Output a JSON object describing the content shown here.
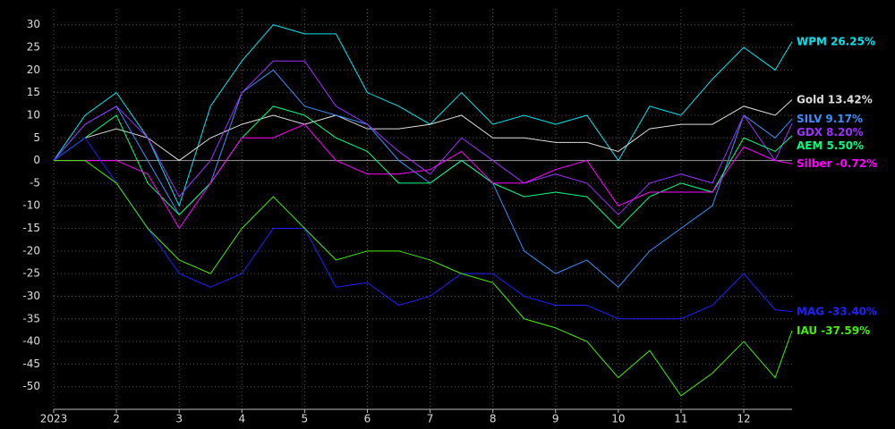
{
  "chart_data": {
    "type": "line",
    "x": [
      1,
      1.5,
      2,
      2.5,
      3,
      3.5,
      4,
      4.5,
      5,
      5.5,
      6,
      6.5,
      7,
      7.5,
      8,
      8.5,
      9,
      9.5,
      10,
      10.5,
      11,
      11.5,
      12,
      12.5,
      12.77
    ],
    "xlim": [
      1,
      12.77
    ],
    "xticks": [
      {
        "value": 1,
        "label": "2023"
      },
      2,
      3,
      4,
      5,
      6,
      7,
      8,
      9,
      10,
      11,
      12
    ],
    "ylim": [
      -55,
      33.5
    ],
    "yticks": [
      -50,
      -45,
      -40,
      -35,
      -30,
      -25,
      -20,
      -15,
      -10,
      -5,
      0,
      5,
      10,
      15,
      20,
      25,
      30
    ],
    "grid": true,
    "series": [
      {
        "name": "WPM",
        "end_label": "26.25%",
        "color": "#00e5ee",
        "values": [
          0,
          10,
          15,
          5,
          -10,
          12,
          22,
          30,
          28,
          28,
          15,
          12,
          8,
          15,
          8,
          10,
          8,
          10,
          0,
          12,
          10,
          18,
          25,
          20,
          26.25
        ]
      },
      {
        "name": "Gold",
        "end_label": "13.42%",
        "color": "#dddddd",
        "values": [
          0,
          5,
          7,
          5,
          0,
          5,
          8,
          10,
          8,
          10,
          7,
          7,
          8,
          10,
          5,
          5,
          4,
          4,
          2,
          7,
          8,
          8,
          12,
          10,
          13.42
        ]
      },
      {
        "name": "SILV",
        "end_label": "9.17%",
        "color": "#3a8fff",
        "values": [
          0,
          8,
          12,
          0,
          -12,
          -5,
          15,
          20,
          12,
          10,
          8,
          0,
          -5,
          0,
          -5,
          -20,
          -25,
          -22,
          -28,
          -20,
          -15,
          -10,
          10,
          5,
          9.17
        ]
      },
      {
        "name": "GDX",
        "end_label": "8.20%",
        "color": "#9b30ff",
        "values": [
          0,
          8,
          12,
          5,
          -8,
          0,
          15,
          22,
          22,
          12,
          8,
          2,
          -3,
          5,
          0,
          -5,
          -3,
          -5,
          -12,
          -5,
          -3,
          -5,
          10,
          0,
          8.2
        ]
      },
      {
        "name": "AEM",
        "end_label": "5.50%",
        "color": "#00ff7f",
        "values": [
          0,
          5,
          10,
          -5,
          -12,
          -5,
          5,
          12,
          10,
          5,
          2,
          -5,
          -5,
          0,
          -5,
          -8,
          -7,
          -8,
          -15,
          -8,
          -5,
          -7,
          5,
          2,
          5.5
        ]
      },
      {
        "name": "Silber",
        "end_label": "-0.72%",
        "color": "#ff00ff",
        "values": [
          0,
          0,
          0,
          -3,
          -15,
          -5,
          5,
          5,
          8,
          0,
          -3,
          -3,
          -2,
          2,
          -5,
          -5,
          -2,
          0,
          -10,
          -7,
          -7,
          -7,
          3,
          0,
          -0.72
        ]
      },
      {
        "name": "MAG",
        "end_label": "-33.40%",
        "color": "#2020ff",
        "values": [
          0,
          5,
          -5,
          -15,
          -25,
          -28,
          -25,
          -15,
          -15,
          -28,
          -27,
          -32,
          -30,
          -25,
          -25,
          -30,
          -32,
          -32,
          -35,
          -35,
          -35,
          -32,
          -25,
          -33,
          -33.4
        ]
      },
      {
        "name": "IAU",
        "end_label": "-37.59%",
        "color": "#44ee00",
        "values": [
          0,
          0,
          -5,
          -15,
          -22,
          -25,
          -15,
          -8,
          -15,
          -22,
          -20,
          -20,
          -22,
          -25,
          -27,
          -35,
          -37,
          -40,
          -48,
          -42,
          -52,
          -47,
          -40,
          -48,
          -37.59
        ]
      }
    ]
  }
}
